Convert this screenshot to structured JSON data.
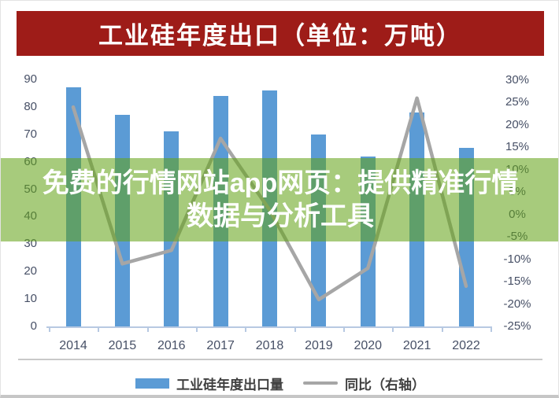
{
  "banner": {
    "title": "工业硅年度出口（单位：万吨）",
    "bg_color": "#9e1c18",
    "text_color": "#ffffff"
  },
  "overlay": {
    "line1": "免费的行情网站app网页：提供精准行情",
    "line2": "数据与分析工具",
    "band_color": "#62a315",
    "band_rgba": "rgba(98,163,21,0.56)",
    "text_color": "#ffffff"
  },
  "legend": {
    "bar_label": "工业硅年度出口量",
    "line_label": "同比（右轴）"
  },
  "chart_data": {
    "type": "bar",
    "title": "工业硅年度出口（单位：万吨）",
    "categories": [
      "2014",
      "2015",
      "2016",
      "2017",
      "2018",
      "2019",
      "2020",
      "2021",
      "2022"
    ],
    "series": [
      {
        "name": "工业硅年度出口量",
        "type": "bar",
        "axis": "left",
        "unit": "万吨",
        "values": [
          87,
          77,
          71,
          84,
          86,
          70,
          62,
          78,
          65
        ]
      },
      {
        "name": "同比（右轴）",
        "type": "line",
        "axis": "right",
        "unit": "%",
        "values": [
          24,
          -11,
          -8,
          17,
          1,
          -19,
          -12,
          26,
          -16
        ]
      }
    ],
    "left_axis": {
      "min": 0,
      "max": 90,
      "step": 10,
      "ticks": [
        90,
        80,
        70,
        60,
        50,
        40,
        30,
        20,
        10,
        0
      ]
    },
    "right_axis": {
      "min": -25,
      "max": 30,
      "step": 5,
      "ticks": [
        "30%",
        "25%",
        "20%",
        "15%",
        "10%",
        "5%",
        "0%",
        "-5%",
        "-10%",
        "-15%",
        "-20%",
        "-25%"
      ]
    },
    "legend_position": "bottom",
    "grid": false
  },
  "colors": {
    "bar": "#5b9bd5",
    "line": "#a6a6a6",
    "axis_text": "#475066",
    "axis_line": "#b7c9e2",
    "legend_text": "#3f3f3f",
    "divider": "#c9c9c9"
  }
}
